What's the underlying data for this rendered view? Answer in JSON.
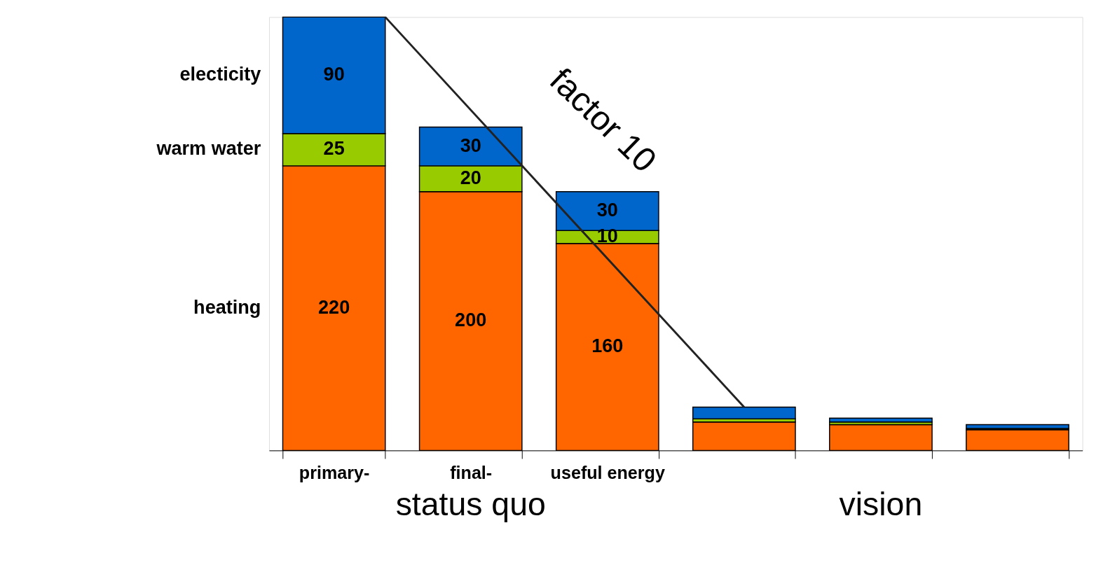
{
  "chart_data": {
    "type": "bar",
    "stacked": true,
    "legend": false,
    "grid": false,
    "categories": [
      "primary-",
      "final-",
      "useful energy",
      null,
      null,
      null
    ],
    "series": [
      {
        "name": "heating",
        "color": "#ff6600",
        "values": [
          220,
          200,
          160,
          22,
          20,
          16
        ],
        "value_labels": [
          "220",
          "200",
          "160",
          null,
          null,
          null
        ]
      },
      {
        "name": "warm water",
        "color": "#99cc00",
        "values": [
          25,
          20,
          10,
          2.5,
          2,
          1
        ],
        "value_labels": [
          "25",
          "20",
          "10",
          null,
          null,
          null
        ]
      },
      {
        "name": "electicity",
        "color": "#0066cc",
        "values": [
          90,
          30,
          30,
          9,
          3,
          3
        ],
        "value_labels": [
          "90",
          "30",
          "30",
          null,
          null,
          null
        ]
      }
    ],
    "annotations": [
      "factor 10",
      "status quo",
      "vision"
    ]
  }
}
